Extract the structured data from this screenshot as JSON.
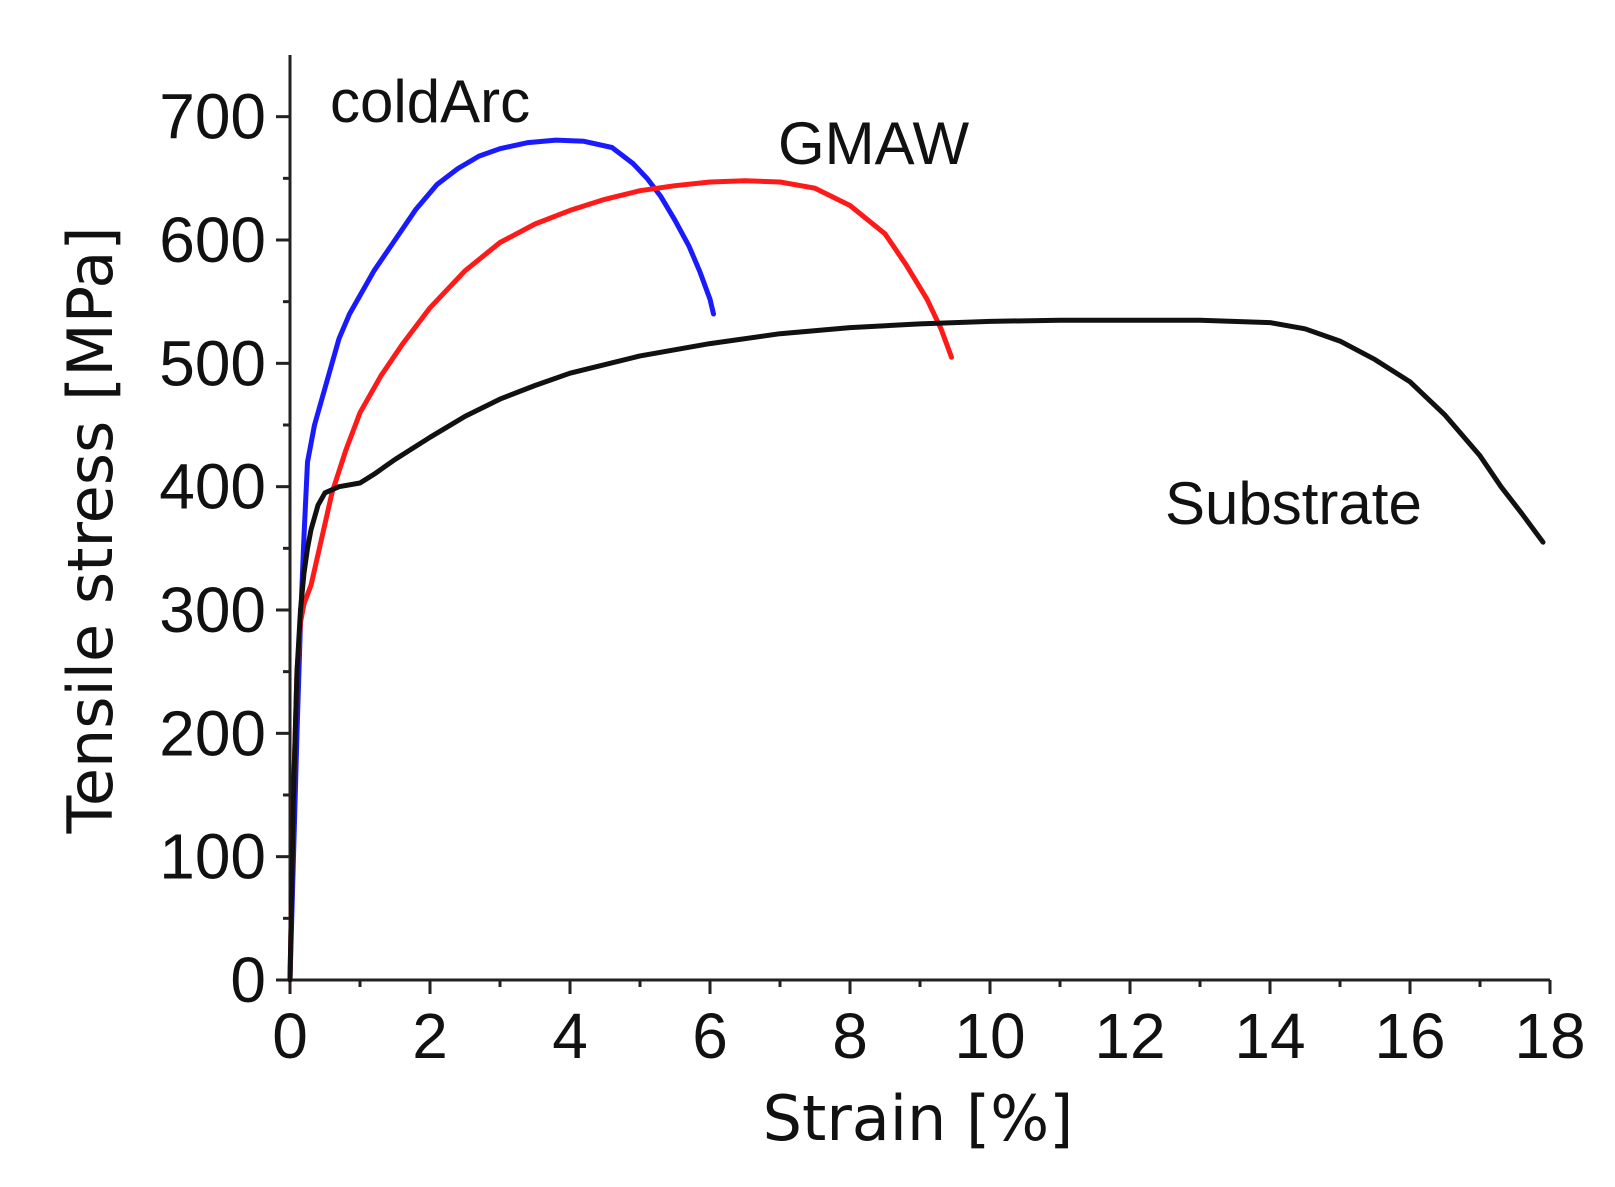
{
  "chart_data": {
    "type": "line",
    "title": "",
    "xlabel": "Strain [%]",
    "ylabel": "Tensile stress [MPa]",
    "xlim": [
      0,
      18
    ],
    "ylim": [
      0,
      750
    ],
    "xticks": [
      0,
      2,
      4,
      6,
      8,
      10,
      12,
      14,
      16,
      18
    ],
    "xtick_labels": [
      "0",
      "2",
      "4",
      "6",
      "8",
      "10",
      "12",
      "14",
      "16",
      "18"
    ],
    "xminor": [
      1,
      3,
      5,
      7,
      9,
      11,
      13,
      15,
      17
    ],
    "yticks": [
      0,
      100,
      200,
      300,
      400,
      500,
      600,
      700
    ],
    "ytick_labels": [
      "0",
      "100",
      "200",
      "300",
      "400",
      "500",
      "600",
      "700"
    ],
    "yminor": [
      50,
      150,
      250,
      350,
      450,
      550,
      650
    ],
    "grid": false,
    "legend": "none",
    "series": [
      {
        "name": "coldArc",
        "color": "#1a1aff",
        "x": [
          0,
          0.05,
          0.1,
          0.15,
          0.2,
          0.25,
          0.35,
          0.5,
          0.7,
          0.85,
          1.0,
          1.2,
          1.5,
          1.8,
          2.1,
          2.4,
          2.7,
          3.0,
          3.4,
          3.8,
          4.2,
          4.6,
          4.9,
          5.1,
          5.3,
          5.5,
          5.7,
          5.85,
          6.0,
          6.05
        ],
        "y": [
          0,
          100,
          200,
          290,
          360,
          420,
          450,
          480,
          520,
          540,
          555,
          575,
          600,
          625,
          645,
          658,
          668,
          674,
          679,
          681,
          680,
          675,
          662,
          650,
          635,
          616,
          595,
          575,
          552,
          540
        ]
      },
      {
        "name": "GMAW",
        "color": "#ff1a1a",
        "x": [
          0,
          0.05,
          0.1,
          0.15,
          0.2,
          0.3,
          0.4,
          0.5,
          0.6,
          0.8,
          1.0,
          1.3,
          1.6,
          2.0,
          2.5,
          3.0,
          3.5,
          4.0,
          4.5,
          5.0,
          5.5,
          6.0,
          6.5,
          7.0,
          7.5,
          8.0,
          8.5,
          8.8,
          9.1,
          9.3,
          9.45
        ],
        "y": [
          0,
          150,
          250,
          290,
          305,
          320,
          345,
          370,
          395,
          430,
          460,
          490,
          515,
          545,
          575,
          598,
          613,
          624,
          633,
          640,
          644,
          647,
          648,
          647,
          642,
          628,
          605,
          580,
          552,
          528,
          505
        ]
      },
      {
        "name": "Substrate",
        "color": "#111111",
        "x": [
          0,
          0.05,
          0.1,
          0.15,
          0.2,
          0.25,
          0.3,
          0.4,
          0.5,
          0.7,
          1.0,
          1.2,
          1.5,
          2.0,
          2.5,
          3.0,
          3.5,
          4.0,
          5.0,
          6.0,
          7.0,
          8.0,
          9.0,
          10.0,
          11.0,
          12.0,
          13.0,
          14.0,
          14.5,
          15.0,
          15.5,
          16.0,
          16.5,
          17.0,
          17.3,
          17.6,
          17.9
        ],
        "y": [
          0,
          150,
          250,
          300,
          330,
          350,
          365,
          385,
          395,
          400,
          403,
          410,
          422,
          440,
          457,
          471,
          482,
          492,
          506,
          516,
          524,
          529,
          532,
          534,
          535,
          535,
          535,
          533,
          528,
          518,
          503,
          485,
          458,
          425,
          400,
          378,
          355
        ]
      }
    ],
    "annotations": [
      "coldArc",
      "GMAW",
      "Substrate"
    ]
  }
}
